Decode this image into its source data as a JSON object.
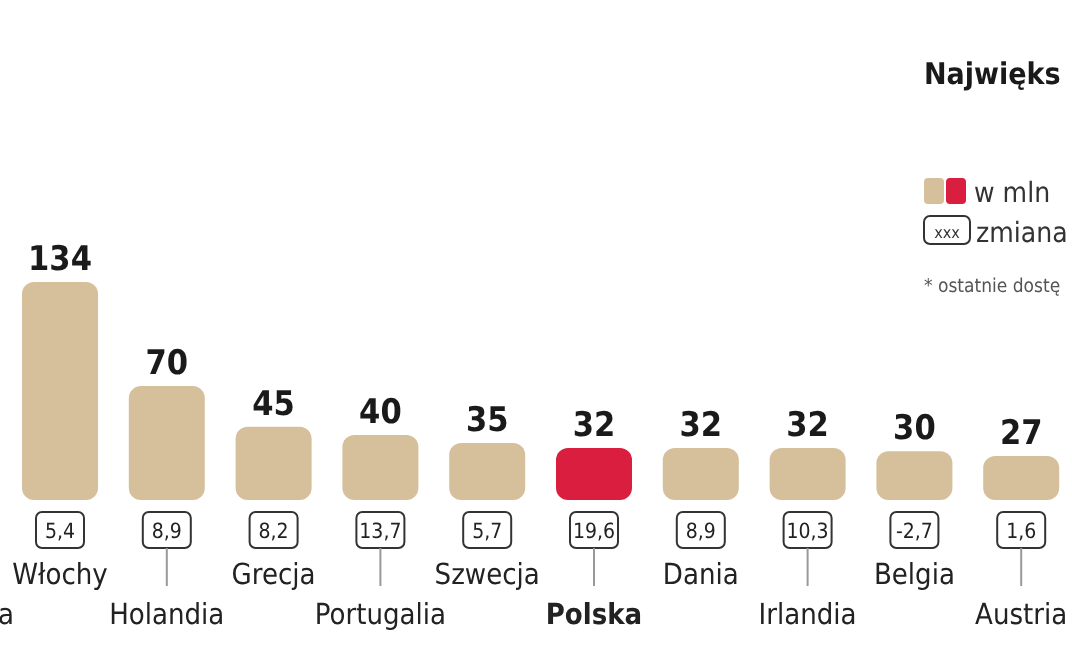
{
  "chart_data": {
    "type": "bar",
    "title": "Najwięks",
    "categories": [
      "Włochy",
      "Holandia",
      "Grecja",
      "Portugalia",
      "Szwecja",
      "Polska",
      "Dania",
      "Irlandia",
      "Belgia",
      "Austria"
    ],
    "series": [
      {
        "name": "w mln",
        "values": [
          134,
          70,
          45,
          40,
          35,
          32,
          32,
          32,
          30,
          27
        ]
      }
    ],
    "colors": [
      "#d5c09b",
      "#d5c09b",
      "#d5c09b",
      "#d5c09b",
      "#d5c09b",
      "#d91e40",
      "#d5c09b",
      "#d5c09b",
      "#d5c09b",
      "#d5c09b"
    ],
    "data_labels": true,
    "legend": "top right",
    "annotations": [
      "5,4",
      "8,9",
      "8,2",
      "13,7",
      "5,7",
      "19,6",
      "8,9",
      "10,3",
      "-2,7",
      "1,6",
      "a",
      "xxx",
      "zmiana",
      "* ostatnie dostę"
    ]
  }
}
